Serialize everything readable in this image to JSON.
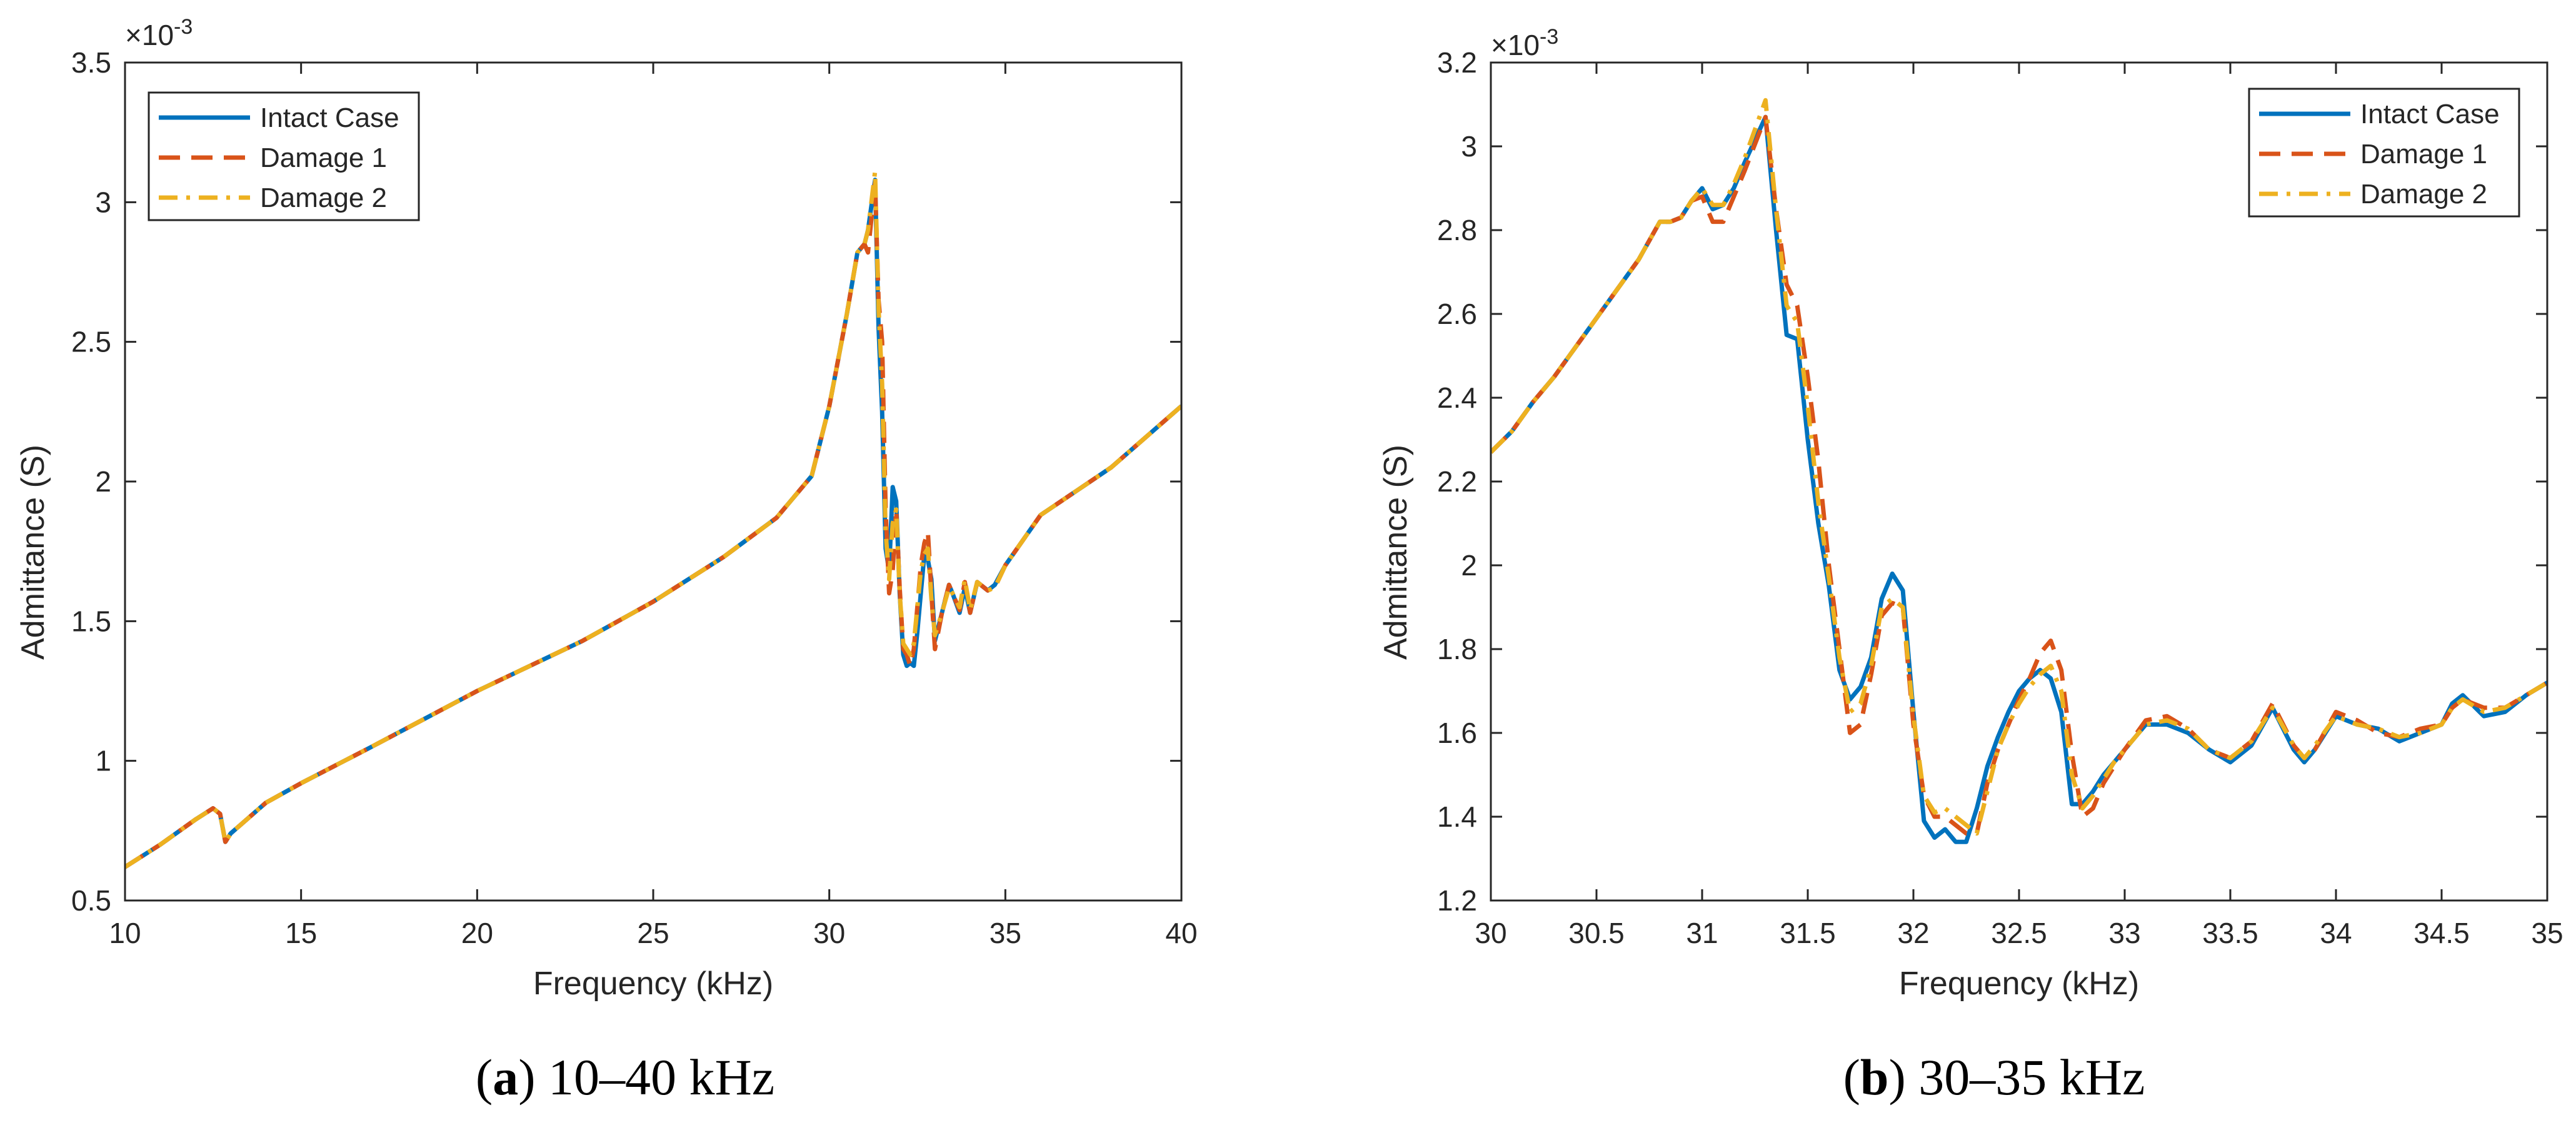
{
  "colors": {
    "intact": "#0072BD",
    "damage1": "#D95319",
    "damage2": "#EDB120"
  },
  "chart_data": [
    {
      "type": "line",
      "caption_label": "a",
      "caption_text": " 10–40 kHz",
      "xlabel": "Frequency (kHz)",
      "ylabel": "Admittance (S)",
      "exponent_label": "×10",
      "exponent_power": "-3",
      "xlim": [
        10,
        40
      ],
      "ylim": [
        0.5,
        3.5
      ],
      "xticks": [
        10,
        15,
        20,
        25,
        30,
        35,
        40
      ],
      "xtick_labels": [
        "10",
        "15",
        "20",
        "25",
        "30",
        "35",
        "40"
      ],
      "yticks": [
        0.5,
        1,
        1.5,
        2,
        2.5,
        3,
        3.5
      ],
      "ytick_labels": [
        "0.5",
        "1",
        "1.5",
        "2",
        "2.5",
        "3",
        "3.5"
      ],
      "grid": false,
      "legend_position": "top-left",
      "series": [
        {
          "name": "Intact Case",
          "style": "solid",
          "x": [
            10,
            11,
            12,
            12.5,
            12.7,
            12.85,
            13,
            14,
            15,
            17,
            20,
            23,
            25,
            27,
            28.5,
            29.5,
            30,
            30.5,
            30.8,
            31,
            31.1,
            31.3,
            31.4,
            31.5,
            31.6,
            31.7,
            31.8,
            31.9,
            32,
            32.1,
            32.2,
            32.3,
            32.4,
            32.5,
            32.6,
            32.7,
            32.8,
            32.9,
            33,
            33.2,
            33.4,
            33.5,
            33.7,
            33.85,
            34,
            34.2,
            34.5,
            34.7,
            35,
            36,
            38,
            40
          ],
          "y": [
            0.62,
            0.7,
            0.79,
            0.83,
            0.81,
            0.71,
            0.74,
            0.85,
            0.92,
            1.05,
            1.25,
            1.43,
            1.57,
            1.73,
            1.87,
            2.02,
            2.27,
            2.6,
            2.82,
            2.85,
            2.9,
            3.08,
            2.55,
            2.25,
            1.76,
            1.68,
            1.98,
            1.93,
            1.6,
            1.38,
            1.34,
            1.35,
            1.34,
            1.46,
            1.6,
            1.74,
            1.72,
            1.65,
            1.43,
            1.53,
            1.63,
            1.6,
            1.53,
            1.62,
            1.53,
            1.64,
            1.61,
            1.63,
            1.7,
            1.88,
            2.05,
            2.27
          ]
        },
        {
          "name": "Damage 1",
          "style": "dashed",
          "x": [
            10,
            11,
            12,
            12.5,
            12.7,
            12.85,
            13,
            14,
            15,
            17,
            20,
            23,
            25,
            27,
            28.5,
            29.5,
            30,
            30.5,
            30.8,
            31,
            31.1,
            31.3,
            31.4,
            31.5,
            31.6,
            31.7,
            31.8,
            31.9,
            32,
            32.1,
            32.2,
            32.3,
            32.4,
            32.5,
            32.6,
            32.7,
            32.8,
            32.9,
            33,
            33.2,
            33.4,
            33.5,
            33.7,
            33.85,
            34,
            34.2,
            34.5,
            34.7,
            35,
            36,
            38,
            40
          ],
          "y": [
            0.62,
            0.7,
            0.79,
            0.83,
            0.81,
            0.71,
            0.74,
            0.85,
            0.92,
            1.05,
            1.25,
            1.43,
            1.57,
            1.73,
            1.87,
            2.02,
            2.27,
            2.6,
            2.82,
            2.85,
            2.82,
            3.07,
            2.65,
            2.5,
            1.9,
            1.6,
            1.68,
            1.9,
            1.62,
            1.4,
            1.38,
            1.34,
            1.4,
            1.55,
            1.7,
            1.78,
            1.82,
            1.6,
            1.4,
            1.53,
            1.63,
            1.6,
            1.54,
            1.64,
            1.53,
            1.64,
            1.61,
            1.62,
            1.7,
            1.88,
            2.05,
            2.27
          ]
        },
        {
          "name": "Damage 2",
          "style": "dashdot",
          "x": [
            10,
            11,
            12,
            12.5,
            12.7,
            12.85,
            13,
            14,
            15,
            17,
            20,
            23,
            25,
            27,
            28.5,
            29.5,
            30,
            30.5,
            30.8,
            31,
            31.1,
            31.3,
            31.4,
            31.5,
            31.6,
            31.7,
            31.8,
            31.9,
            32,
            32.1,
            32.2,
            32.3,
            32.4,
            32.5,
            32.6,
            32.7,
            32.8,
            32.9,
            33,
            33.2,
            33.4,
            33.5,
            33.7,
            33.85,
            34,
            34.2,
            34.5,
            34.7,
            35,
            36,
            38,
            40
          ],
          "y": [
            0.62,
            0.7,
            0.79,
            0.83,
            0.81,
            0.71,
            0.74,
            0.85,
            0.92,
            1.05,
            1.25,
            1.43,
            1.57,
            1.73,
            1.87,
            2.02,
            2.27,
            2.6,
            2.82,
            2.85,
            2.9,
            3.11,
            2.62,
            2.35,
            1.82,
            1.65,
            1.85,
            1.9,
            1.6,
            1.42,
            1.4,
            1.38,
            1.42,
            1.55,
            1.68,
            1.74,
            1.76,
            1.58,
            1.45,
            1.53,
            1.62,
            1.6,
            1.55,
            1.65,
            1.54,
            1.64,
            1.61,
            1.62,
            1.7,
            1.88,
            2.05,
            2.27
          ]
        }
      ]
    },
    {
      "type": "line",
      "caption_label": "b",
      "caption_text": " 30–35 kHz",
      "xlabel": "Frequency (kHz)",
      "ylabel": "Admittance (S)",
      "exponent_label": "×10",
      "exponent_power": "-3",
      "xlim": [
        30,
        35
      ],
      "ylim": [
        1.2,
        3.2
      ],
      "xticks": [
        30,
        30.5,
        31,
        31.5,
        32,
        32.5,
        33,
        33.5,
        34,
        34.5,
        35
      ],
      "xtick_labels": [
        "30",
        "30.5",
        "31",
        "31.5",
        "32",
        "32.5",
        "33",
        "33.5",
        "34",
        "34.5",
        "35"
      ],
      "yticks": [
        1.2,
        1.4,
        1.6,
        1.8,
        2,
        2.2,
        2.4,
        2.6,
        2.8,
        3,
        3.2
      ],
      "ytick_labels": [
        "1.2",
        "1.4",
        "1.6",
        "1.8",
        "2",
        "2.2",
        "2.4",
        "2.6",
        "2.8",
        "3",
        "3.2"
      ],
      "grid": false,
      "legend_position": "top-right",
      "series": [
        {
          "name": "Intact Case",
          "style": "solid",
          "x": [
            30,
            30.1,
            30.2,
            30.3,
            30.4,
            30.5,
            30.6,
            30.7,
            30.8,
            30.85,
            30.9,
            30.95,
            31,
            31.05,
            31.1,
            31.15,
            31.2,
            31.3,
            31.35,
            31.4,
            31.45,
            31.5,
            31.55,
            31.6,
            31.65,
            31.7,
            31.75,
            31.8,
            31.85,
            31.9,
            31.95,
            32,
            32.05,
            32.1,
            32.15,
            32.2,
            32.25,
            32.3,
            32.35,
            32.4,
            32.45,
            32.5,
            32.55,
            32.6,
            32.65,
            32.7,
            32.75,
            32.8,
            32.85,
            32.9,
            32.95,
            33,
            33.1,
            33.2,
            33.3,
            33.4,
            33.5,
            33.6,
            33.7,
            33.8,
            33.85,
            33.9,
            34,
            34.1,
            34.2,
            34.3,
            34.4,
            34.5,
            34.55,
            34.6,
            34.7,
            34.8,
            34.9,
            35
          ],
          "y": [
            2.27,
            2.32,
            2.39,
            2.45,
            2.52,
            2.59,
            2.66,
            2.73,
            2.82,
            2.82,
            2.83,
            2.87,
            2.9,
            2.85,
            2.86,
            2.9,
            2.96,
            3.07,
            2.8,
            2.55,
            2.54,
            2.3,
            2.1,
            1.95,
            1.75,
            1.68,
            1.71,
            1.78,
            1.92,
            1.98,
            1.94,
            1.65,
            1.39,
            1.35,
            1.37,
            1.34,
            1.34,
            1.42,
            1.52,
            1.59,
            1.65,
            1.7,
            1.73,
            1.75,
            1.73,
            1.65,
            1.43,
            1.43,
            1.46,
            1.5,
            1.53,
            1.56,
            1.62,
            1.62,
            1.6,
            1.56,
            1.53,
            1.57,
            1.66,
            1.56,
            1.53,
            1.56,
            1.64,
            1.62,
            1.61,
            1.58,
            1.6,
            1.62,
            1.67,
            1.69,
            1.64,
            1.65,
            1.69,
            1.72
          ]
        },
        {
          "name": "Damage 1",
          "style": "dashed",
          "x": [
            30,
            30.1,
            30.2,
            30.3,
            30.4,
            30.5,
            30.6,
            30.7,
            30.8,
            30.85,
            30.9,
            30.95,
            31,
            31.05,
            31.1,
            31.15,
            31.2,
            31.3,
            31.35,
            31.4,
            31.45,
            31.5,
            31.55,
            31.6,
            31.65,
            31.7,
            31.75,
            31.8,
            31.85,
            31.9,
            31.95,
            32,
            32.05,
            32.1,
            32.15,
            32.2,
            32.25,
            32.3,
            32.35,
            32.4,
            32.45,
            32.5,
            32.55,
            32.6,
            32.65,
            32.7,
            32.75,
            32.8,
            32.85,
            32.9,
            32.95,
            33,
            33.1,
            33.2,
            33.3,
            33.4,
            33.5,
            33.6,
            33.7,
            33.8,
            33.85,
            33.9,
            34,
            34.1,
            34.2,
            34.3,
            34.4,
            34.5,
            34.55,
            34.6,
            34.7,
            34.8,
            34.9,
            35
          ],
          "y": [
            2.27,
            2.32,
            2.39,
            2.45,
            2.52,
            2.59,
            2.66,
            2.73,
            2.82,
            2.82,
            2.83,
            2.87,
            2.88,
            2.82,
            2.82,
            2.88,
            2.94,
            3.07,
            2.85,
            2.67,
            2.62,
            2.45,
            2.25,
            2.0,
            1.8,
            1.6,
            1.62,
            1.74,
            1.88,
            1.91,
            1.9,
            1.62,
            1.45,
            1.4,
            1.4,
            1.38,
            1.36,
            1.36,
            1.48,
            1.56,
            1.62,
            1.68,
            1.73,
            1.79,
            1.82,
            1.75,
            1.55,
            1.4,
            1.42,
            1.48,
            1.52,
            1.56,
            1.63,
            1.64,
            1.61,
            1.56,
            1.54,
            1.58,
            1.67,
            1.57,
            1.54,
            1.56,
            1.65,
            1.63,
            1.6,
            1.59,
            1.61,
            1.62,
            1.66,
            1.68,
            1.66,
            1.66,
            1.69,
            1.72
          ]
        },
        {
          "name": "Damage 2",
          "style": "dashdot",
          "x": [
            30,
            30.1,
            30.2,
            30.3,
            30.4,
            30.5,
            30.6,
            30.7,
            30.8,
            30.85,
            30.9,
            30.95,
            31,
            31.05,
            31.1,
            31.15,
            31.2,
            31.3,
            31.35,
            31.4,
            31.45,
            31.5,
            31.55,
            31.6,
            31.65,
            31.7,
            31.75,
            31.8,
            31.85,
            31.9,
            31.95,
            32,
            32.05,
            32.1,
            32.15,
            32.2,
            32.25,
            32.3,
            32.35,
            32.4,
            32.45,
            32.5,
            32.55,
            32.6,
            32.65,
            32.7,
            32.75,
            32.8,
            32.85,
            32.9,
            32.95,
            33,
            33.1,
            33.2,
            33.3,
            33.4,
            33.5,
            33.6,
            33.7,
            33.8,
            33.85,
            33.9,
            34,
            34.1,
            34.2,
            34.3,
            34.4,
            34.5,
            34.55,
            34.6,
            34.7,
            34.8,
            34.9,
            35
          ],
          "y": [
            2.27,
            2.32,
            2.39,
            2.45,
            2.52,
            2.59,
            2.66,
            2.73,
            2.82,
            2.82,
            2.83,
            2.87,
            2.9,
            2.86,
            2.86,
            2.91,
            2.97,
            3.11,
            2.85,
            2.62,
            2.58,
            2.38,
            2.15,
            1.97,
            1.78,
            1.65,
            1.67,
            1.76,
            1.9,
            1.92,
            1.9,
            1.64,
            1.45,
            1.41,
            1.42,
            1.4,
            1.38,
            1.36,
            1.46,
            1.56,
            1.62,
            1.67,
            1.71,
            1.74,
            1.76,
            1.7,
            1.5,
            1.42,
            1.45,
            1.49,
            1.53,
            1.56,
            1.62,
            1.63,
            1.61,
            1.56,
            1.54,
            1.58,
            1.66,
            1.57,
            1.54,
            1.57,
            1.64,
            1.62,
            1.61,
            1.59,
            1.6,
            1.62,
            1.66,
            1.68,
            1.65,
            1.66,
            1.69,
            1.72
          ]
        }
      ]
    }
  ]
}
